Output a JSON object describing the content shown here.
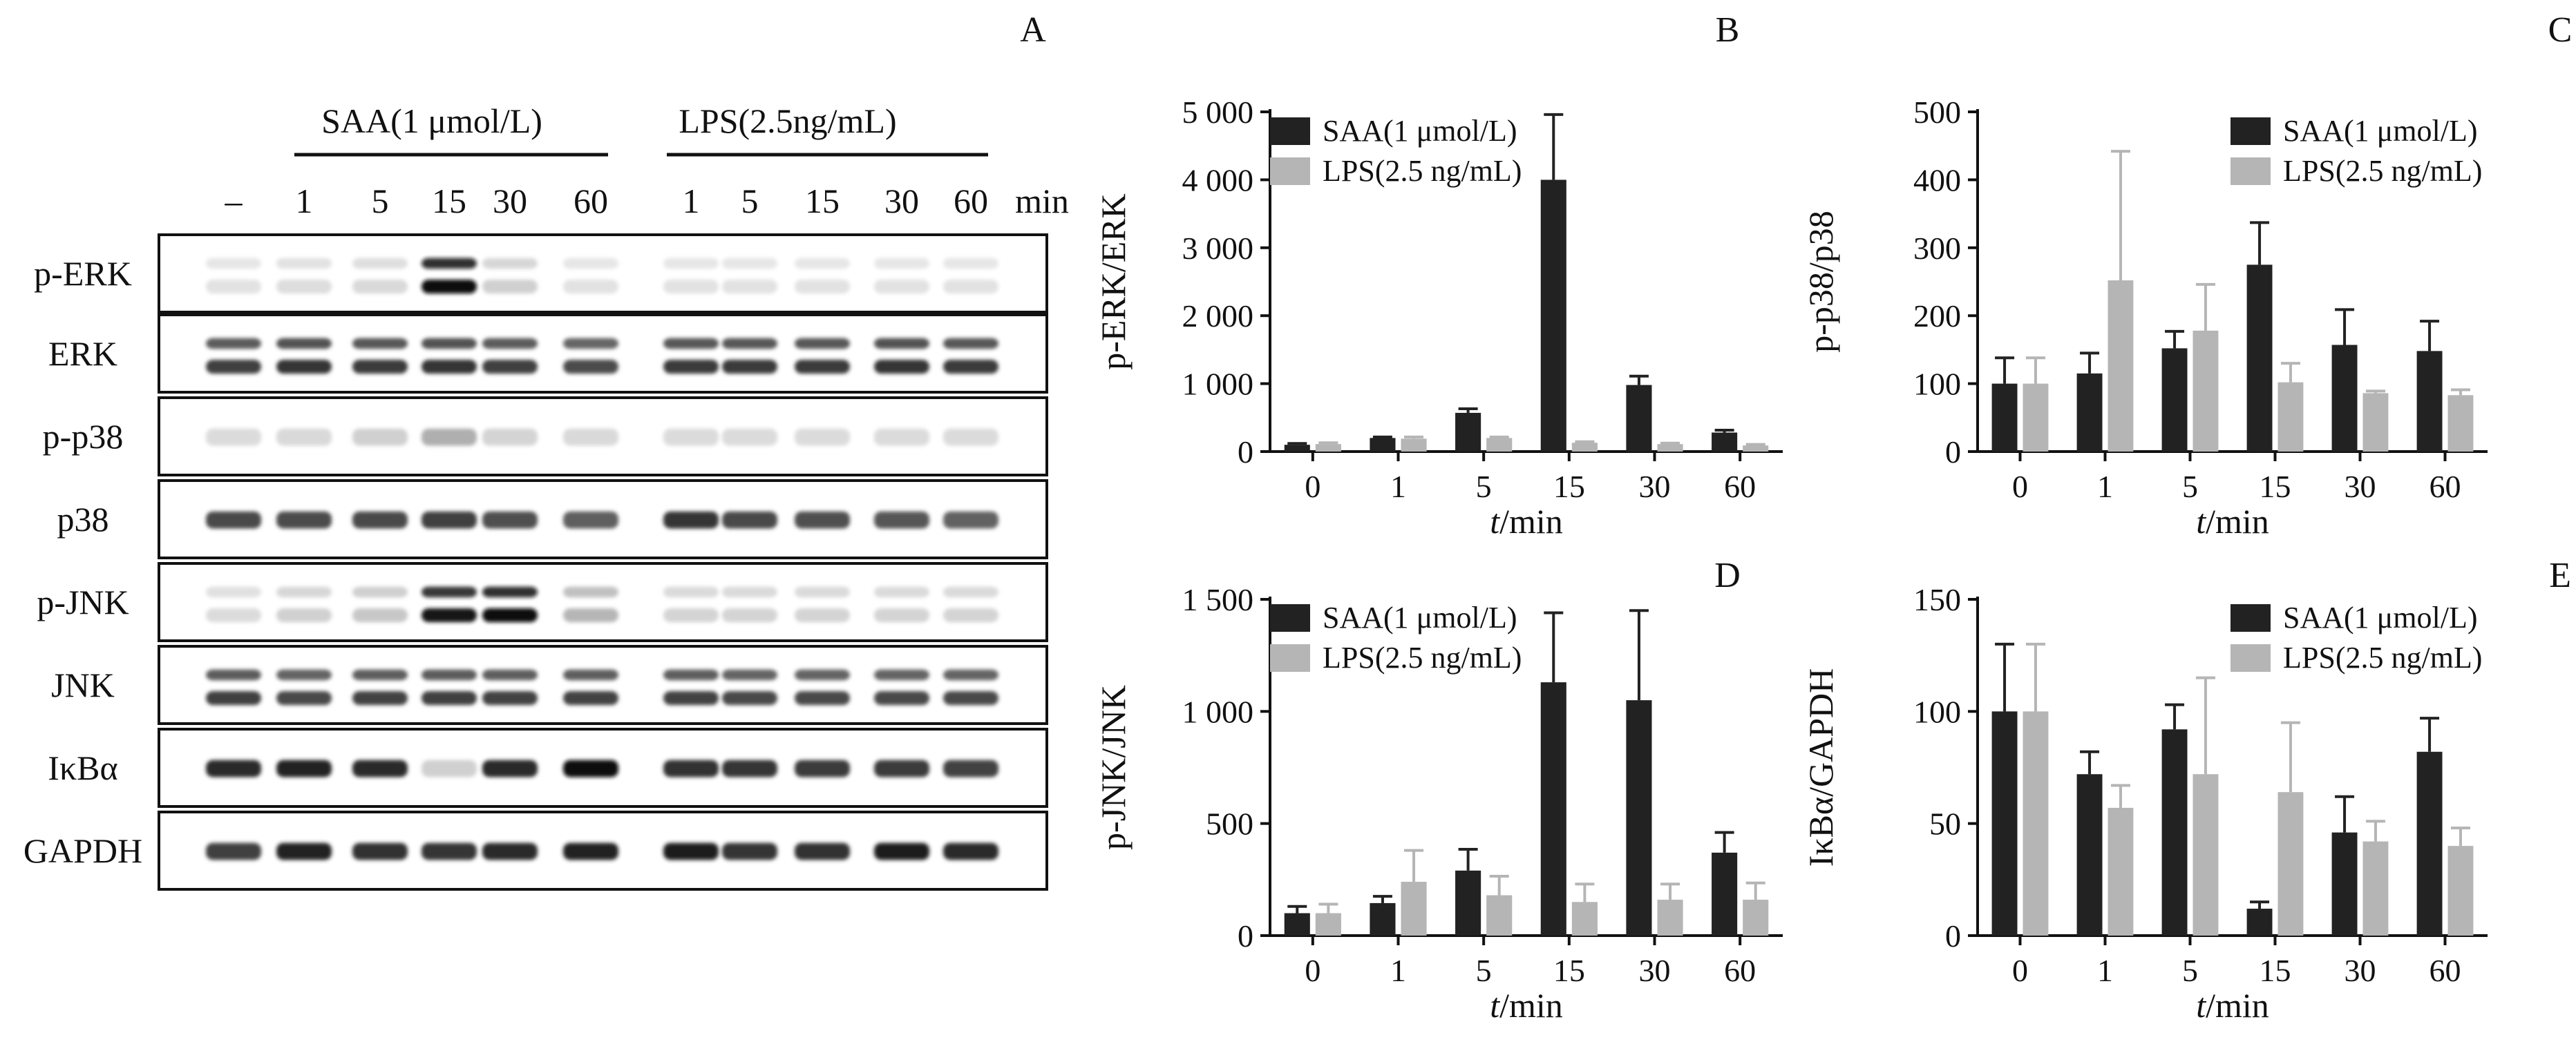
{
  "blot": {
    "panel_label": "A",
    "groups": [
      {
        "label": "SAA(1 μmol/L)"
      },
      {
        "label": "LPS(2.5ng/mL)"
      }
    ],
    "lanes": [
      "–",
      "1",
      "5",
      "15",
      "30",
      "60",
      "1",
      "5",
      "15",
      "30",
      "60"
    ],
    "unit": "min",
    "rows": [
      {
        "label": "p-ERK",
        "intensity": [
          0.02,
          0.04,
          0.06,
          0.98,
          0.1,
          0.02,
          0.02,
          0.02,
          0.02,
          0.02,
          0.02
        ],
        "double": true
      },
      {
        "label": "ERK",
        "intensity": [
          0.75,
          0.8,
          0.78,
          0.8,
          0.76,
          0.7,
          0.78,
          0.78,
          0.78,
          0.8,
          0.78
        ],
        "double": true
      },
      {
        "label": "p-p38",
        "intensity": [
          0.05,
          0.06,
          0.1,
          0.25,
          0.08,
          0.06,
          0.05,
          0.05,
          0.05,
          0.05,
          0.05
        ],
        "double": false
      },
      {
        "label": "p38",
        "intensity": [
          0.72,
          0.7,
          0.72,
          0.75,
          0.68,
          0.62,
          0.8,
          0.72,
          0.68,
          0.65,
          0.6
        ],
        "double": false
      },
      {
        "label": "p-JNK",
        "intensity": [
          0.05,
          0.1,
          0.14,
          0.95,
          0.98,
          0.22,
          0.08,
          0.08,
          0.08,
          0.08,
          0.08
        ],
        "double": true
      },
      {
        "label": "JNK",
        "intensity": [
          0.75,
          0.72,
          0.74,
          0.76,
          0.74,
          0.74,
          0.74,
          0.72,
          0.72,
          0.72,
          0.72
        ],
        "double": true
      },
      {
        "label": "IκBα",
        "intensity": [
          0.85,
          0.88,
          0.85,
          0.1,
          0.85,
          0.98,
          0.82,
          0.8,
          0.78,
          0.78,
          0.74
        ],
        "double": false
      },
      {
        "label": "GAPDH",
        "intensity": [
          0.75,
          0.9,
          0.82,
          0.8,
          0.85,
          0.9,
          0.92,
          0.8,
          0.82,
          0.92,
          0.85
        ],
        "double": false
      }
    ]
  },
  "chart_data": [
    {
      "type": "bar",
      "panel_label": "B",
      "categories": [
        "0",
        "1",
        "5",
        "15",
        "30",
        "60"
      ],
      "xlabel_italic": "t",
      "xlabel_rest": "/min",
      "ylabel": "p-ERK/ERK",
      "ylim": [
        0,
        5000
      ],
      "yticks": [
        0,
        1000,
        2000,
        3000,
        4000,
        5000
      ],
      "ytick_labels": [
        "0",
        "1 000",
        "2 000",
        "3 000",
        "4 000",
        "5 000"
      ],
      "legend": "top-left",
      "series": [
        {
          "name": "SAA(1 μmol/L)",
          "color": "#222222",
          "values": [
            100,
            200,
            570,
            4000,
            980,
            280
          ],
          "errors": [
            20,
            15,
            60,
            960,
            130,
            35
          ]
        },
        {
          "name": "LPS(2.5 ng/mL)",
          "color": "#b5b5b5",
          "values": [
            110,
            190,
            200,
            130,
            110,
            90
          ],
          "errors": [
            20,
            25,
            15,
            15,
            15,
            15
          ]
        }
      ]
    },
    {
      "type": "bar",
      "panel_label": "C",
      "categories": [
        "0",
        "1",
        "5",
        "15",
        "30",
        "60"
      ],
      "xlabel_italic": "t",
      "xlabel_rest": "/min",
      "ylabel": "p-p38/p38",
      "ylim": [
        0,
        500
      ],
      "yticks": [
        0,
        100,
        200,
        300,
        400,
        500
      ],
      "ytick_labels": [
        "0",
        "100",
        "200",
        "300",
        "400",
        "500"
      ],
      "legend": "top-right",
      "series": [
        {
          "name": "SAA(1 μmol/L)",
          "color": "#222222",
          "values": [
            100,
            115,
            152,
            275,
            157,
            148
          ],
          "errors": [
            38,
            30,
            25,
            62,
            52,
            44
          ]
        },
        {
          "name": "LPS(2.5 ng/mL)",
          "color": "#b5b5b5",
          "values": [
            100,
            252,
            178,
            102,
            86,
            83
          ],
          "errors": [
            38,
            190,
            68,
            28,
            3,
            8
          ]
        }
      ]
    },
    {
      "type": "bar",
      "panel_label": "D",
      "categories": [
        "0",
        "1",
        "5",
        "15",
        "30",
        "60"
      ],
      "xlabel_italic": "t",
      "xlabel_rest": "/min",
      "ylabel": "p-JNK/JNK",
      "ylim": [
        0,
        1500
      ],
      "yticks": [
        0,
        500,
        1000,
        1500
      ],
      "ytick_labels": [
        "0",
        "500",
        "1 000",
        "1 500"
      ],
      "legend": "top-left",
      "series": [
        {
          "name": "SAA(1 μmol/L)",
          "color": "#222222",
          "values": [
            100,
            145,
            290,
            1130,
            1050,
            370
          ],
          "errors": [
            30,
            30,
            95,
            310,
            400,
            90
          ]
        },
        {
          "name": "LPS(2.5 ng/mL)",
          "color": "#b5b5b5",
          "values": [
            100,
            240,
            180,
            150,
            160,
            160
          ],
          "errors": [
            40,
            140,
            85,
            80,
            70,
            75
          ]
        }
      ]
    },
    {
      "type": "bar",
      "panel_label": "E",
      "categories": [
        "0",
        "1",
        "5",
        "15",
        "30",
        "60"
      ],
      "xlabel_italic": "t",
      "xlabel_rest": "/min",
      "ylabel": "IκBα/GAPDH",
      "ylim": [
        0,
        150
      ],
      "yticks": [
        0,
        50,
        100,
        150
      ],
      "ytick_labels": [
        "0",
        "50",
        "100",
        "150"
      ],
      "legend": "top-right",
      "series": [
        {
          "name": "SAA(1 μmol/L)",
          "color": "#222222",
          "values": [
            100,
            72,
            92,
            12,
            46,
            82
          ],
          "errors": [
            30,
            10,
            11,
            3,
            16,
            15
          ]
        },
        {
          "name": "LPS(2.5 ng/mL)",
          "color": "#b5b5b5",
          "values": [
            100,
            57,
            72,
            64,
            42,
            40
          ],
          "errors": [
            30,
            10,
            43,
            31,
            9,
            8
          ]
        }
      ]
    }
  ]
}
